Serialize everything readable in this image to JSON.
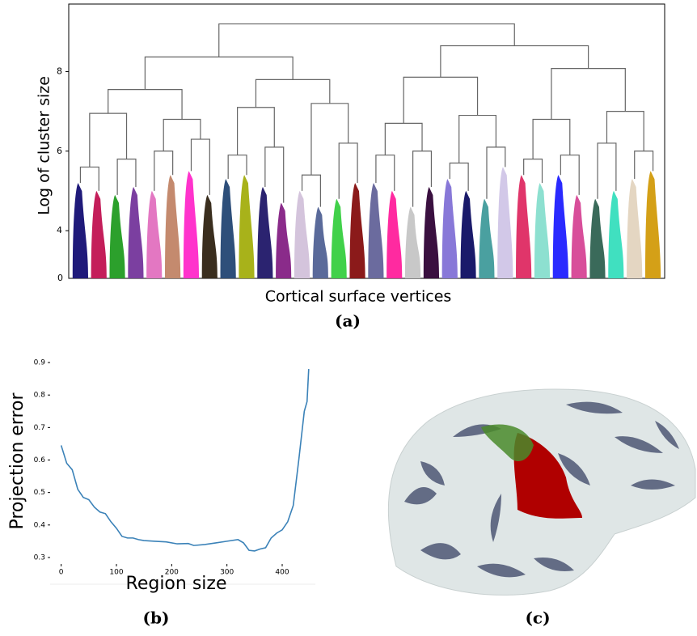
{
  "chart_data": [
    {
      "type": "dendrogram",
      "y_label": "Log of cluster size",
      "x_label": "Cortical surface vertices",
      "caption": "(a)",
      "ylim": [
        2.8,
        9.7
      ],
      "yticks": [
        4,
        6,
        8
      ],
      "y_origin_label": "0",
      "leaf_colors": [
        "#1f1a7a",
        "#c41e5a",
        "#2ca02c",
        "#7b3fa0",
        "#e377c2",
        "#c48a6e",
        "#ff33cc",
        "#3a2e1e",
        "#2e4f7a",
        "#a8b21a",
        "#2b2370",
        "#8a2b8a",
        "#d4c4dc",
        "#5a6a9a",
        "#41d14a",
        "#8b1a1a",
        "#6b6b9e",
        "#ff2aa0",
        "#c8c8c8",
        "#3a1040",
        "#8878d8",
        "#1a1a6a",
        "#4aa0a0",
        "#d2c8e8",
        "#e0356a",
        "#8de0d0",
        "#2a2aff",
        "#d84e9a",
        "#3a6a5a",
        "#40e0c0",
        "#e4d6c2",
        "#d4a017"
      ],
      "leaf_heights": [
        5.2,
        5.0,
        4.9,
        5.1,
        5.0,
        5.4,
        5.5,
        4.9,
        5.3,
        5.4,
        5.1,
        4.7,
        5.0,
        4.6,
        4.8,
        5.2,
        5.2,
        5.0,
        4.6,
        5.1,
        5.3,
        5.0,
        4.8,
        5.6,
        5.4,
        5.2,
        5.4,
        4.9,
        4.8,
        5.0,
        5.3,
        5.5
      ],
      "merge_heights": [
        [
          5.6,
          5.8,
          6.0,
          6.3,
          5.9,
          6.1,
          5.4,
          6.2,
          5.9,
          6.0,
          5.7,
          6.1,
          5.8,
          5.9,
          6.2,
          6.0
        ],
        [
          6.95,
          6.8,
          7.1,
          7.2,
          6.7,
          6.9,
          6.8,
          7.0
        ],
        [
          7.55,
          7.8,
          7.86,
          8.08
        ],
        [
          8.37,
          8.65
        ],
        [
          9.2
        ]
      ]
    },
    {
      "type": "line",
      "y_label": "Projection error",
      "x_label": "Region size",
      "caption": "(b)",
      "color": "#3b82b8",
      "xlim": [
        -20,
        460
      ],
      "ylim": [
        0.28,
        0.92
      ],
      "xticks": [
        0,
        100,
        200,
        300,
        400
      ],
      "yticks": [
        0.3,
        0.4,
        0.5,
        0.6,
        0.7,
        0.8,
        0.9
      ],
      "x": [
        0,
        10,
        20,
        30,
        40,
        50,
        60,
        70,
        80,
        90,
        100,
        110,
        120,
        130,
        140,
        150,
        170,
        190,
        210,
        230,
        240,
        260,
        280,
        300,
        320,
        330,
        340,
        350,
        360,
        370,
        380,
        390,
        400,
        410,
        420,
        430,
        440,
        445,
        448
      ],
      "values": [
        0.645,
        0.59,
        0.57,
        0.51,
        0.485,
        0.478,
        0.455,
        0.44,
        0.435,
        0.41,
        0.39,
        0.365,
        0.36,
        0.36,
        0.355,
        0.352,
        0.35,
        0.348,
        0.342,
        0.343,
        0.337,
        0.34,
        0.345,
        0.35,
        0.355,
        0.345,
        0.322,
        0.32,
        0.326,
        0.33,
        0.36,
        0.375,
        0.385,
        0.41,
        0.46,
        0.6,
        0.75,
        0.78,
        0.88
      ]
    },
    {
      "type": "image",
      "caption": "(c)"
    }
  ]
}
